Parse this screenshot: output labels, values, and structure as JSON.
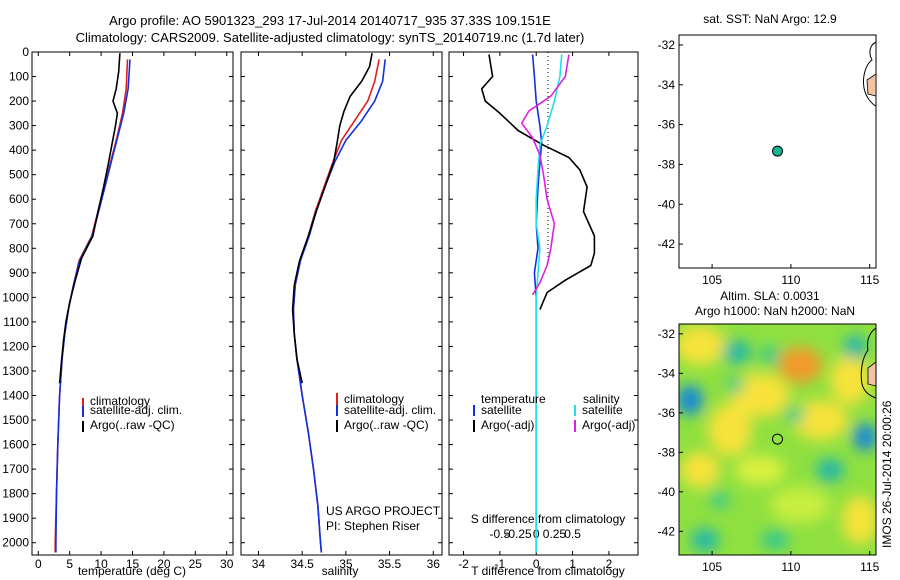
{
  "title": {
    "line1": "Argo profile: AO 5901323_293 17-Jul-2014 20140717_935 37.33S 109.151E",
    "line2": "Climatology: CARS2009. Satellite-adjusted climatology: synTS_20140719.nc (1.7d later)"
  },
  "colors": {
    "climatology": "#e02020",
    "satellite": "#1030e0",
    "argo": "#000000",
    "sat_salinity": "#20e0f0",
    "argo_salinity_diff": "#e020e0",
    "float_marker": "#19b394",
    "land": "#f2c4a0"
  },
  "chart_data": [
    {
      "type": "line",
      "name": "temperature-panel",
      "xlabel": "temperature (deg C)",
      "ylabel": "",
      "xlim": [
        -1,
        31
      ],
      "ylim": [
        0,
        2050
      ],
      "y_inverted": true,
      "xticks": [
        0,
        5,
        10,
        15,
        20,
        25,
        30
      ],
      "yticks": [
        0,
        100,
        200,
        300,
        400,
        500,
        600,
        700,
        800,
        900,
        1000,
        1100,
        1200,
        1300,
        1400,
        1500,
        1600,
        1700,
        1800,
        1900,
        2000
      ],
      "legend": {
        "location": "middle-right",
        "entries": [
          "climatology",
          "satellite-adj. clim.",
          "Argo(..raw -QC)"
        ]
      },
      "series": [
        {
          "name": "climatology",
          "color": "#e02020",
          "points": [
            [
              14.2,
              30
            ],
            [
              14.0,
              150
            ],
            [
              13.4,
              250
            ],
            [
              12.5,
              350
            ],
            [
              11.5,
              450
            ],
            [
              10.5,
              550
            ],
            [
              9.5,
              650
            ],
            [
              8.5,
              750
            ],
            [
              6.5,
              850
            ],
            [
              5.6,
              950
            ],
            [
              4.8,
              1050
            ],
            [
              4.2,
              1150
            ],
            [
              3.8,
              1250
            ],
            [
              3.4,
              1400
            ],
            [
              3.1,
              1600
            ],
            [
              2.9,
              1800
            ],
            [
              2.7,
              2000
            ],
            [
              2.7,
              2040
            ]
          ]
        },
        {
          "name": "satellite-adj. clim.",
          "color": "#1030e0",
          "points": [
            [
              14.6,
              30
            ],
            [
              14.3,
              150
            ],
            [
              13.6,
              250
            ],
            [
              12.6,
              350
            ],
            [
              11.6,
              450
            ],
            [
              10.6,
              550
            ],
            [
              9.6,
              650
            ],
            [
              8.6,
              750
            ],
            [
              6.6,
              850
            ],
            [
              5.6,
              950
            ],
            [
              4.8,
              1050
            ],
            [
              4.2,
              1150
            ],
            [
              3.8,
              1250
            ],
            [
              3.4,
              1400
            ],
            [
              3.1,
              1600
            ],
            [
              2.9,
              1800
            ],
            [
              2.8,
              2000
            ],
            [
              2.8,
              2040
            ]
          ]
        },
        {
          "name": "Argo(..raw -QC)",
          "color": "#000000",
          "points": [
            [
              13.0,
              5
            ],
            [
              12.8,
              80
            ],
            [
              12.4,
              150
            ],
            [
              11.9,
              200
            ],
            [
              12.6,
              250
            ],
            [
              12.3,
              300
            ],
            [
              11.7,
              380
            ],
            [
              11.2,
              450
            ],
            [
              10.4,
              550
            ],
            [
              9.5,
              650
            ],
            [
              8.7,
              750
            ],
            [
              6.9,
              840
            ],
            [
              5.9,
              930
            ],
            [
              5.0,
              1020
            ],
            [
              4.4,
              1100
            ],
            [
              4.0,
              1180
            ],
            [
              3.7,
              1260
            ],
            [
              3.4,
              1350
            ]
          ]
        }
      ]
    },
    {
      "type": "line",
      "name": "salinity-panel",
      "xlabel": "salinity",
      "xlim": [
        33.8,
        36.1
      ],
      "ylim": [
        0,
        2050
      ],
      "y_inverted": true,
      "xticks": [
        34,
        34.5,
        35,
        35.5,
        36
      ],
      "legend": {
        "location": "middle-right",
        "entries": [
          "climatology",
          "satellite-adj. clim.",
          "Argo(..raw -QC)"
        ]
      },
      "annotation": [
        "US ARGO PROJECT",
        "PI: Stephen Riser"
      ],
      "series": [
        {
          "name": "climatology",
          "color": "#e02020",
          "points": [
            [
              35.38,
              30
            ],
            [
              35.33,
              120
            ],
            [
              35.25,
              200
            ],
            [
              35.1,
              280
            ],
            [
              34.95,
              360
            ],
            [
              34.85,
              450
            ],
            [
              34.75,
              550
            ],
            [
              34.65,
              650
            ],
            [
              34.57,
              750
            ],
            [
              34.48,
              850
            ],
            [
              34.42,
              950
            ],
            [
              34.4,
              1050
            ],
            [
              34.41,
              1150
            ],
            [
              34.44,
              1250
            ],
            [
              34.5,
              1400
            ],
            [
              34.57,
              1550
            ],
            [
              34.63,
              1700
            ],
            [
              34.68,
              1850
            ],
            [
              34.71,
              2000
            ],
            [
              34.72,
              2040
            ]
          ]
        },
        {
          "name": "satellite-adj. clim.",
          "color": "#1030e0",
          "points": [
            [
              35.45,
              30
            ],
            [
              35.42,
              120
            ],
            [
              35.33,
              200
            ],
            [
              35.18,
              280
            ],
            [
              35.0,
              360
            ],
            [
              34.87,
              450
            ],
            [
              34.76,
              550
            ],
            [
              34.66,
              650
            ],
            [
              34.58,
              750
            ],
            [
              34.48,
              850
            ],
            [
              34.42,
              950
            ],
            [
              34.4,
              1050
            ],
            [
              34.41,
              1150
            ],
            [
              34.44,
              1250
            ],
            [
              34.5,
              1400
            ],
            [
              34.57,
              1550
            ],
            [
              34.63,
              1700
            ],
            [
              34.68,
              1850
            ],
            [
              34.71,
              2000
            ],
            [
              34.72,
              2040
            ]
          ]
        },
        {
          "name": "Argo(..raw -QC)",
          "color": "#000000",
          "points": [
            [
              35.3,
              5
            ],
            [
              35.27,
              60
            ],
            [
              35.18,
              120
            ],
            [
              35.05,
              180
            ],
            [
              34.98,
              240
            ],
            [
              34.93,
              300
            ],
            [
              34.9,
              370
            ],
            [
              34.86,
              450
            ],
            [
              34.76,
              550
            ],
            [
              34.66,
              650
            ],
            [
              34.57,
              750
            ],
            [
              34.47,
              850
            ],
            [
              34.41,
              950
            ],
            [
              34.39,
              1050
            ],
            [
              34.41,
              1150
            ],
            [
              34.44,
              1250
            ],
            [
              34.5,
              1350
            ]
          ]
        }
      ]
    },
    {
      "type": "line",
      "name": "difference-panel",
      "xlabel": "T difference from climatology",
      "xlabel_top": "S difference from climatology",
      "xlim": [
        -2.4,
        2.8
      ],
      "ylim": [
        0,
        2050
      ],
      "y_inverted": true,
      "xticks": [
        -2,
        -1,
        0,
        1,
        2
      ],
      "s_ticks": [
        -0.5,
        -0.25,
        0,
        0.25,
        0.5
      ],
      "legend": {
        "location": "middle",
        "temperature_heading": "temperature",
        "salinity_heading": "salinity",
        "entries": [
          "satellite",
          "Argo(-adj)",
          "satellite",
          "Argo(-adj)"
        ]
      },
      "series": [
        {
          "name": "temperature satellite",
          "color": "#1030e0",
          "points": [
            [
              -0.1,
              10
            ],
            [
              -0.05,
              100
            ],
            [
              0.0,
              200
            ],
            [
              0.1,
              300
            ],
            [
              0.15,
              370
            ],
            [
              0.1,
              450
            ],
            [
              0.05,
              550
            ],
            [
              0.0,
              700
            ],
            [
              0.05,
              800
            ],
            [
              -0.05,
              900
            ],
            [
              0.0,
              1000
            ],
            [
              0.0,
              2040
            ]
          ]
        },
        {
          "name": "temperature Argo(-adj)",
          "color": "#000000",
          "points": [
            [
              -1.3,
              10
            ],
            [
              -1.2,
              100
            ],
            [
              -1.5,
              150
            ],
            [
              -1.4,
              200
            ],
            [
              -1.0,
              250
            ],
            [
              -0.5,
              320
            ],
            [
              0.2,
              380
            ],
            [
              0.9,
              430
            ],
            [
              1.2,
              480
            ],
            [
              1.4,
              550
            ],
            [
              1.3,
              650
            ],
            [
              1.6,
              750
            ],
            [
              1.6,
              820
            ],
            [
              1.5,
              870
            ],
            [
              0.8,
              930
            ],
            [
              0.3,
              980
            ],
            [
              0.1,
              1050
            ]
          ]
        },
        {
          "name": "salinity satellite",
          "color": "#20e0f0",
          "points": [
            [
              0.7,
              10
            ],
            [
              0.65,
              100
            ],
            [
              0.5,
              200
            ],
            [
              0.3,
              300
            ],
            [
              0.1,
              380
            ],
            [
              0.05,
              480
            ],
            [
              0.0,
              600
            ],
            [
              0.0,
              700
            ],
            [
              0.1,
              800
            ],
            [
              0.05,
              900
            ],
            [
              0.0,
              1000
            ],
            [
              0.0,
              2040
            ]
          ]
        },
        {
          "name": "salinity Argo(-adj)",
          "color": "#e020e0",
          "points": [
            [
              0.9,
              10
            ],
            [
              0.8,
              100
            ],
            [
              0.4,
              180
            ],
            [
              -0.2,
              240
            ],
            [
              -0.4,
              290
            ],
            [
              -0.1,
              350
            ],
            [
              0.1,
              420
            ],
            [
              0.2,
              500
            ],
            [
              0.3,
              600
            ],
            [
              0.5,
              700
            ],
            [
              0.4,
              800
            ],
            [
              0.3,
              870
            ],
            [
              0.1,
              940
            ],
            [
              -0.1,
              990
            ]
          ]
        }
      ]
    },
    {
      "type": "scatter",
      "name": "sst-map",
      "title": "sat. SST: NaN Argo: 12.9",
      "xlim": [
        102.9,
        115.4
      ],
      "ylim": [
        -43.2,
        -31.5
      ],
      "xticks": [
        105,
        110,
        115
      ],
      "yticks": [
        -32,
        -34,
        -36,
        -38,
        -40,
        -42
      ],
      "points": [
        {
          "lon": 109.15,
          "lat": -37.33
        }
      ]
    },
    {
      "type": "heatmap",
      "name": "altimetry-map",
      "title_line1": "Altim. SLA: 0.0031",
      "title_line2": "Argo h1000: NaN h2000: NaN",
      "xlim": [
        102.9,
        115.4
      ],
      "ylim": [
        -43.2,
        -31.5
      ],
      "xticks": [
        105,
        110,
        115
      ],
      "yticks": [
        -32,
        -34,
        -36,
        -38,
        -40,
        -42
      ],
      "points": [
        {
          "lon": 109.15,
          "lat": -37.33
        }
      ]
    }
  ],
  "stamp": "IMOS 26-Jul-2014 20:00:26"
}
